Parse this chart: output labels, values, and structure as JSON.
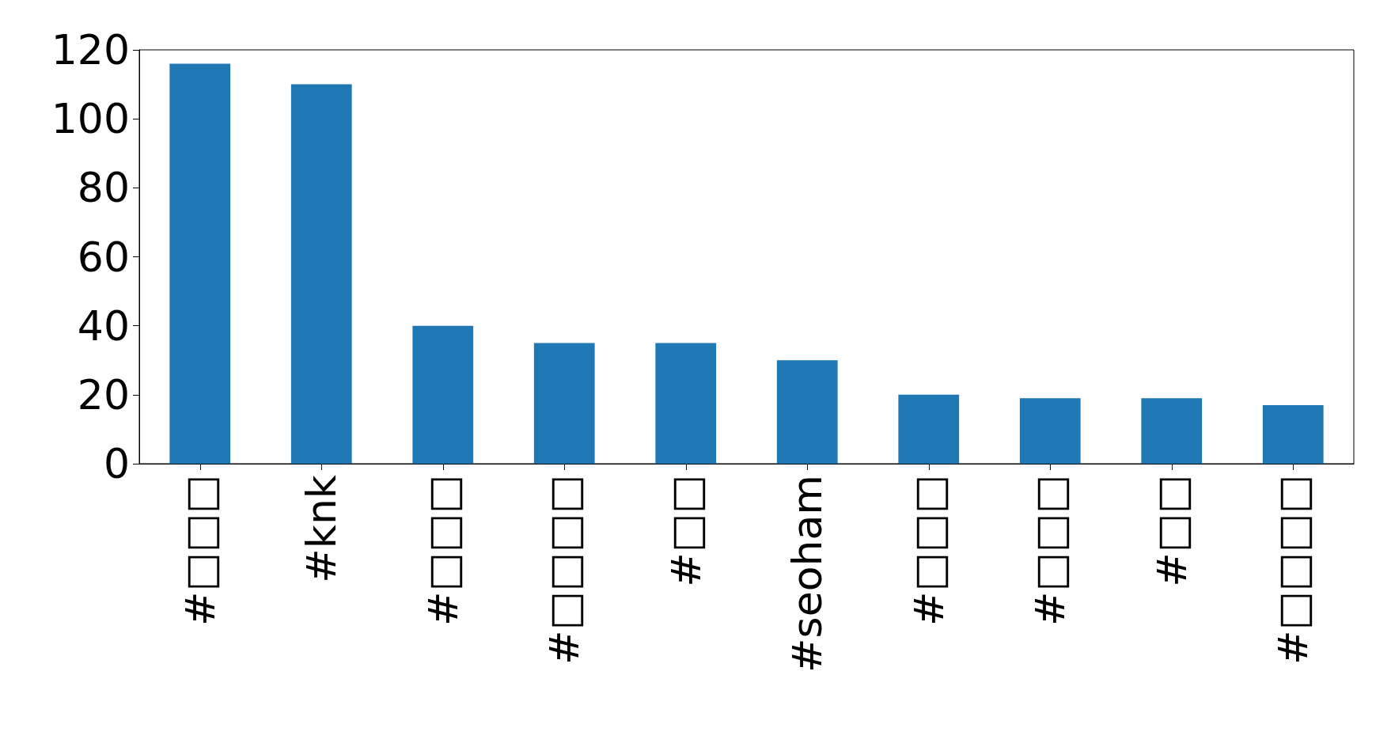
{
  "chart_data": {
    "type": "bar",
    "categories": [
      "#□□□",
      "#knk",
      "#□□□",
      "#□□□□",
      "#□□",
      "#seoham",
      "#□□□",
      "#□□□",
      "#□□",
      "#□□□□"
    ],
    "values": [
      116,
      110,
      40,
      35,
      35,
      30,
      20,
      19,
      19,
      17
    ],
    "color": "#1f77b4",
    "ylim": [
      0,
      120
    ],
    "yticks": [
      0,
      20,
      40,
      60,
      80,
      100,
      120
    ],
    "grid": false
  }
}
